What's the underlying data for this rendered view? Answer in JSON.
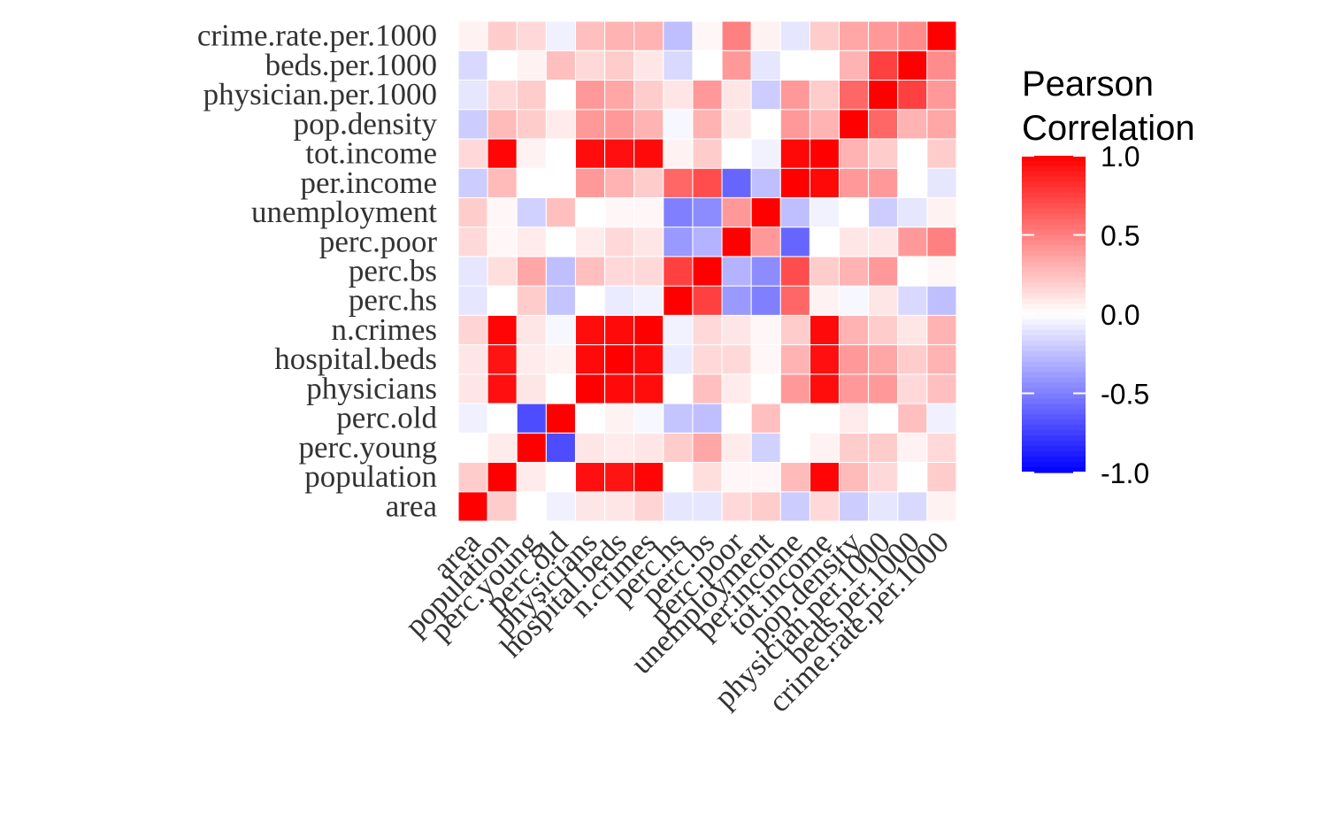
{
  "chart_data": {
    "type": "heatmap",
    "title": "",
    "xlabel": "",
    "ylabel": "",
    "variables": [
      "area",
      "population",
      "perc.young",
      "perc.old",
      "physicians",
      "hospital.beds",
      "n.crimes",
      "perc.hs",
      "perc.bs",
      "perc.poor",
      "unemployment",
      "per.income",
      "tot.income",
      "pop.density",
      "physician.per.1000",
      "beds.per.1000",
      "crime.rate.per.1000"
    ],
    "matrix": [
      [
        1.0,
        0.2,
        0.0,
        -0.06,
        0.1,
        0.1,
        0.17,
        -0.1,
        -0.1,
        0.15,
        0.2,
        -0.2,
        0.15,
        -0.2,
        -0.1,
        -0.15,
        0.05
      ],
      [
        0.2,
        1.0,
        0.08,
        0.0,
        0.94,
        0.92,
        0.98,
        0.0,
        0.13,
        0.03,
        0.03,
        0.27,
        0.98,
        0.27,
        0.15,
        0.0,
        0.2
      ],
      [
        0.0,
        0.08,
        1.0,
        -0.7,
        0.1,
        0.08,
        0.1,
        0.2,
        0.35,
        0.08,
        -0.18,
        0.0,
        0.05,
        0.2,
        0.2,
        0.05,
        0.15
      ],
      [
        -0.06,
        0.0,
        -0.7,
        1.0,
        0.0,
        0.05,
        -0.03,
        -0.23,
        -0.25,
        0.0,
        0.25,
        0.0,
        0.0,
        0.08,
        0.0,
        0.25,
        -0.06
      ],
      [
        0.1,
        0.94,
        0.1,
        0.0,
        1.0,
        0.96,
        0.95,
        0.0,
        0.25,
        0.08,
        0.0,
        0.4,
        0.95,
        0.4,
        0.4,
        0.15,
        0.25
      ],
      [
        0.1,
        0.92,
        0.08,
        0.05,
        0.96,
        1.0,
        0.96,
        -0.08,
        0.15,
        0.15,
        0.03,
        0.3,
        0.94,
        0.4,
        0.35,
        0.2,
        0.3
      ],
      [
        0.17,
        0.98,
        0.1,
        -0.03,
        0.95,
        0.96,
        1.0,
        -0.05,
        0.15,
        0.1,
        0.03,
        0.2,
        0.96,
        0.3,
        0.2,
        0.1,
        0.3
      ],
      [
        -0.1,
        0.0,
        0.2,
        -0.23,
        0.0,
        -0.08,
        -0.05,
        1.0,
        0.75,
        -0.4,
        -0.5,
        0.6,
        0.05,
        -0.03,
        0.1,
        -0.15,
        -0.25
      ],
      [
        -0.1,
        0.13,
        0.35,
        -0.25,
        0.25,
        0.15,
        0.15,
        0.75,
        1.0,
        -0.3,
        -0.45,
        0.7,
        0.2,
        0.3,
        0.4,
        0.0,
        0.03
      ],
      [
        0.15,
        0.03,
        0.08,
        0.0,
        0.08,
        0.15,
        0.1,
        -0.4,
        -0.3,
        1.0,
        0.4,
        -0.6,
        0.0,
        0.1,
        0.1,
        0.4,
        0.5
      ],
      [
        0.2,
        0.03,
        -0.18,
        0.25,
        0.0,
        0.03,
        0.03,
        -0.5,
        -0.45,
        0.4,
        1.0,
        -0.25,
        -0.05,
        0.0,
        -0.2,
        -0.1,
        0.05
      ],
      [
        -0.2,
        0.27,
        0.0,
        0.0,
        0.4,
        0.3,
        0.2,
        0.6,
        0.7,
        -0.6,
        -0.25,
        1.0,
        0.97,
        0.4,
        0.4,
        0.0,
        -0.1
      ],
      [
        0.15,
        0.98,
        0.05,
        0.0,
        0.95,
        0.94,
        0.96,
        0.05,
        0.2,
        0.0,
        -0.05,
        0.97,
        1.0,
        0.3,
        0.2,
        0.0,
        0.2
      ],
      [
        -0.2,
        0.27,
        0.2,
        0.08,
        0.4,
        0.4,
        0.3,
        -0.03,
        0.3,
        0.1,
        0.0,
        0.4,
        0.3,
        1.0,
        0.6,
        0.3,
        0.35
      ],
      [
        -0.1,
        0.15,
        0.2,
        0.0,
        0.4,
        0.35,
        0.2,
        0.1,
        0.4,
        0.1,
        -0.2,
        0.4,
        0.2,
        0.6,
        1.0,
        0.75,
        0.4
      ],
      [
        -0.15,
        0.0,
        0.05,
        0.25,
        0.15,
        0.2,
        0.1,
        -0.15,
        0.0,
        0.4,
        -0.1,
        0.0,
        0.0,
        0.3,
        0.75,
        1.0,
        0.45
      ],
      [
        0.05,
        0.2,
        0.15,
        -0.06,
        0.25,
        0.3,
        0.3,
        -0.25,
        0.03,
        0.5,
        0.05,
        -0.1,
        0.2,
        0.35,
        0.4,
        0.45,
        1.0
      ]
    ],
    "scale": {
      "min": -1,
      "max": 1,
      "low_color": "#0000ff",
      "mid_color": "#ffffff",
      "high_color": "#ff0000"
    },
    "legend": {
      "title_lines": [
        "Pearson",
        "Correlation"
      ],
      "ticks": [
        1.0,
        0.5,
        0.0,
        -0.5,
        -1.0
      ],
      "tick_labels": [
        "1.0",
        "0.5",
        "0.0",
        "-0.5",
        "-1.0"
      ],
      "position": "right"
    }
  }
}
